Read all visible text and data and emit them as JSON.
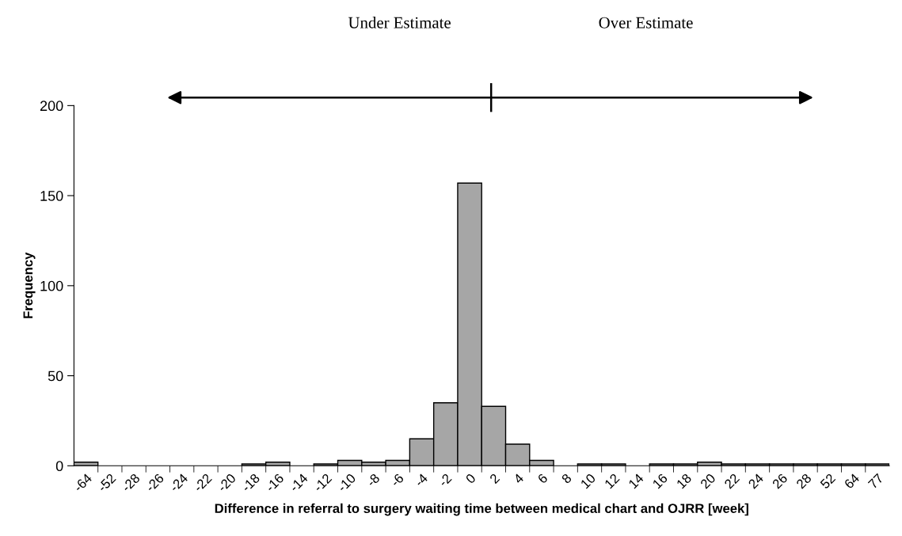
{
  "chart_data": {
    "type": "bar",
    "categories": [
      "-64",
      "-52",
      "-28",
      "-26",
      "-24",
      "-22",
      "-20",
      "-18",
      "-16",
      "-14",
      "-12",
      "-10",
      "-8",
      "-6",
      "-4",
      "-2",
      "0",
      "2",
      "4",
      "6",
      "8",
      "10",
      "12",
      "14",
      "16",
      "18",
      "20",
      "22",
      "24",
      "26",
      "28",
      "52",
      "64",
      "77"
    ],
    "values": [
      2,
      0,
      0,
      0,
      0,
      0,
      0,
      1,
      2,
      0,
      1,
      3,
      2,
      3,
      15,
      35,
      157,
      33,
      12,
      3,
      0,
      1,
      1,
      0,
      1,
      1,
      2,
      1,
      1,
      1,
      1,
      1,
      1,
      1
    ],
    "color": "#a6a6a6",
    "xlabel": "Difference in referral to surgery waiting time between medical chart and OJRR [week]",
    "ylabel": "Frequency",
    "ylim": [
      0,
      200
    ],
    "yticks": [
      0,
      50,
      100,
      150,
      200
    ],
    "annotations": [
      "Under Estimate",
      "Over Estimate"
    ],
    "grid": false,
    "legend": false
  }
}
